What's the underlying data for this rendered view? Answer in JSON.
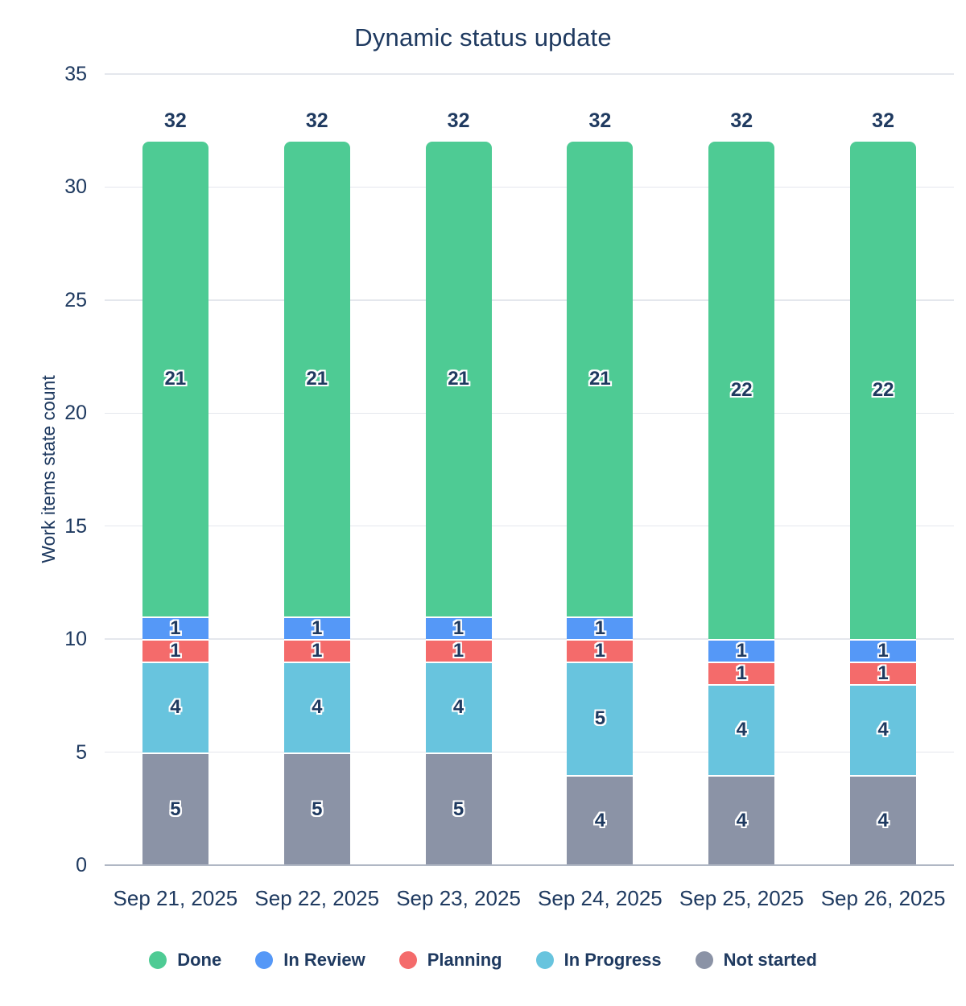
{
  "theme": {
    "text_color": "#1F3A60",
    "gridline_color": "#E4E7ED",
    "baseline_color": "#B0B7C4",
    "background": "#FFFFFF",
    "label_halo_color": "#FFFFFF"
  },
  "chart_data": {
    "type": "bar",
    "stacked": true,
    "title": "Dynamic status update",
    "ylabel": "Work items state count",
    "xlabel": "",
    "ylim": [
      0,
      35
    ],
    "ytick_step": 5,
    "grid": true,
    "legend_position": "bottom",
    "categories": [
      "Sep 21, 2025",
      "Sep 22, 2025",
      "Sep 23, 2025",
      "Sep 24, 2025",
      "Sep 25, 2025",
      "Sep 26, 2025"
    ],
    "series": [
      {
        "name": "Done",
        "color": "#4ECB94",
        "values": [
          21,
          21,
          21,
          21,
          22,
          22
        ]
      },
      {
        "name": "In Review",
        "color": "#5598F7",
        "values": [
          1,
          1,
          1,
          1,
          1,
          1
        ]
      },
      {
        "name": "Planning",
        "color": "#F46B6B",
        "values": [
          1,
          1,
          1,
          1,
          1,
          1
        ]
      },
      {
        "name": "In Progress",
        "color": "#68C4DE",
        "values": [
          4,
          4,
          4,
          5,
          4,
          4
        ]
      },
      {
        "name": "Not started",
        "color": "#8B93A6",
        "values": [
          5,
          5,
          5,
          4,
          4,
          4
        ]
      }
    ],
    "stack_order_bottom_to_top": [
      "Not started",
      "In Progress",
      "Planning",
      "In Review",
      "Done"
    ],
    "totals": [
      32,
      32,
      32,
      32,
      32,
      32
    ]
  }
}
